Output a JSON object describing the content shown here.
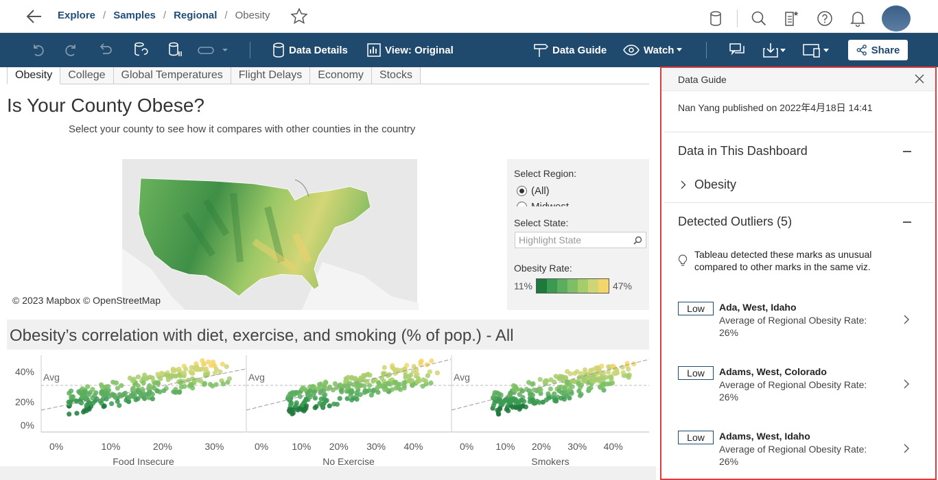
{
  "breadcrumb": {
    "items": [
      "Explore",
      "Samples",
      "Regional"
    ],
    "current": "Obesity"
  },
  "top_icons": [
    "datasource-icon",
    "search-icon",
    "create-icon",
    "help-icon",
    "bell-icon"
  ],
  "toolbar": {
    "data_details": "Data Details",
    "view": "View: Original",
    "data_guide": "Data Guide",
    "watch": "Watch",
    "share": "Share"
  },
  "tabs": [
    "Obesity",
    "College",
    "Global Temperatures",
    "Flight Delays",
    "Economy",
    "Stocks"
  ],
  "dashboard": {
    "title": "Is Your County Obese?",
    "subtitle": "Select your county to see how it compares with other counties in the country",
    "map_credits": "© 2023 Mapbox  © OpenStreetMap",
    "select_region_label": "Select Region:",
    "region_options": [
      "(All)",
      "Midwest"
    ],
    "select_state_label": "Select State:",
    "state_placeholder": "Highlight State",
    "obesity_rate_label": "Obesity Rate:",
    "legend_min": "11%",
    "legend_max": "47%",
    "legend_colors": [
      "#1e7a3c",
      "#3a9a50",
      "#5aae5e",
      "#7cbf64",
      "#a6cd6c",
      "#cdd574",
      "#f4d56a"
    ],
    "correlation_title": "Obesity’s correlation with diet, exercise, and smoking (% of pop.) - All"
  },
  "chart_data": {
    "type": "scatter",
    "panels": [
      {
        "xlabel": "Food Insecure",
        "xticks": [
          "0%",
          "10%",
          "20%",
          "30%"
        ]
      },
      {
        "xlabel": "No Exercise",
        "xticks": [
          "0%",
          "10%",
          "20%",
          "30%",
          "40%"
        ]
      },
      {
        "xlabel": "Smokers",
        "xticks": [
          "0%",
          "10%",
          "20%",
          "30%",
          "40%"
        ]
      }
    ],
    "yticks": [
      "40%",
      "20%",
      "0%"
    ],
    "avg_label": "Avg"
  },
  "guide": {
    "header": "Data Guide",
    "published": "Nan Yang published on 2022年4月18日 14:41",
    "data_section": "Data in This Dashboard",
    "data_source": "Obesity",
    "outliers_section": "Detected Outliers (5)",
    "tip_line1": "Tableau detected these marks as unusual",
    "tip_line2": "compared to other marks in the same viz.",
    "outliers": [
      {
        "badge": "Low",
        "name": "Ada, West, Idaho",
        "metric": "Average of Regional Obesity Rate:",
        "value": "26%"
      },
      {
        "badge": "Low",
        "name": "Adams, West, Colorado",
        "metric": "Average of Regional Obesity Rate:",
        "value": "26%"
      },
      {
        "badge": "Low",
        "name": "Adams, West, Idaho",
        "metric": "Average of Regional Obesity Rate:",
        "value": "26%"
      }
    ]
  }
}
